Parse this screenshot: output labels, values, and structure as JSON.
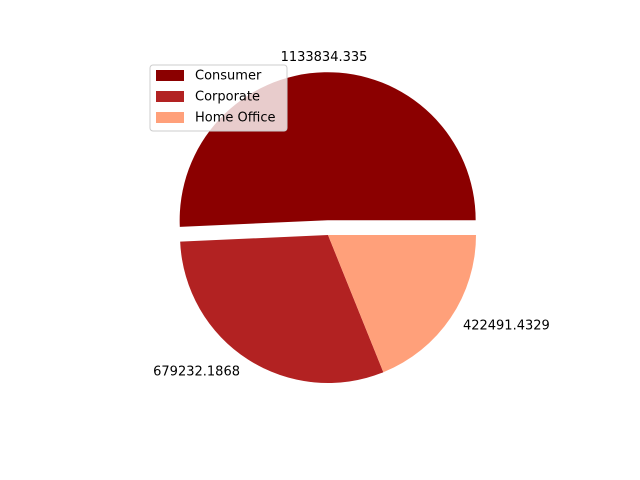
{
  "chart_data": {
    "type": "pie",
    "title": "",
    "categories": [
      "Consumer",
      "Corporate",
      "Home Office"
    ],
    "values": [
      1133834.335,
      679232.1868,
      422491.4329
    ],
    "value_labels": [
      "1133834.335",
      "679232.1868",
      "422491.4329"
    ],
    "colors": [
      "#8b0000",
      "#b22222",
      "#ffa07a"
    ],
    "explode": [
      0.1,
      0,
      0
    ],
    "start_angle": 0,
    "legend": {
      "placement": "upper-left",
      "entries": [
        "Consumer",
        "Corporate",
        "Home Office"
      ]
    }
  }
}
